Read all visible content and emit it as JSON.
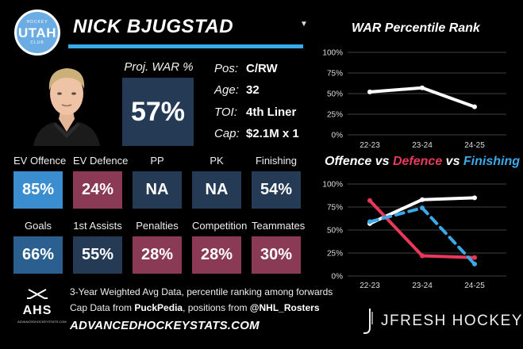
{
  "team_logo": {
    "text": "UTAH",
    "ring_top": "HOCKEY",
    "ring_bottom": "CLUB"
  },
  "player": {
    "name": "NICK BJUGSTAD"
  },
  "proj_war": {
    "label": "Proj. WAR %",
    "value": "57%"
  },
  "info": [
    {
      "label": "Pos:",
      "value": "C/RW"
    },
    {
      "label": "Age:",
      "value": "32"
    },
    {
      "label": "TOI:",
      "value": "4th Liner"
    },
    {
      "label": "Cap:",
      "value": "$2.1M x 1"
    }
  ],
  "stats_row1": [
    {
      "label": "EV Offence",
      "value": "85%",
      "color": "#3a8ed0"
    },
    {
      "label": "EV Defence",
      "value": "24%",
      "color": "#8a3a55"
    },
    {
      "label": "PP",
      "value": "NA",
      "color": "#243a55"
    },
    {
      "label": "PK",
      "value": "NA",
      "color": "#243a55"
    },
    {
      "label": "Finishing",
      "value": "54%",
      "color": "#243a55"
    }
  ],
  "stats_row2": [
    {
      "label": "Goals",
      "value": "66%",
      "color": "#2a5f8f"
    },
    {
      "label": "1st Assists",
      "value": "55%",
      "color": "#243a55"
    },
    {
      "label": "Penalties",
      "value": "28%",
      "color": "#8a3a55"
    },
    {
      "label": "Competition",
      "value": "28%",
      "color": "#8a3a55"
    },
    {
      "label": "Teammates",
      "value": "30%",
      "color": "#8a3a55"
    }
  ],
  "footer": {
    "line1": "3-Year Weighted Avg Data, percentile ranking among forwards",
    "line2_prefix": "Cap Data from ",
    "line2_source1": "PuckPedia",
    "line2_mid": ", positions from ",
    "line2_source2": "@NHL_Rosters",
    "website": "ADVANCEDHOCKEYSTATS.COM"
  },
  "ahs_logo": {
    "text": "AHS",
    "small": "ADVANCEDHOCKEYSTATS.COM"
  },
  "jfresh": {
    "text": "JFRESH HOCKEY"
  },
  "chart_data": [
    {
      "type": "line",
      "title": "WAR Percentile Rank",
      "categories": [
        "22-23",
        "23-24",
        "24-25"
      ],
      "yticks": [
        "0%",
        "25%",
        "50%",
        "75%",
        "100%"
      ],
      "ylim": [
        0,
        100
      ],
      "grid": true,
      "series": [
        {
          "name": "",
          "values": [
            52,
            57,
            34
          ],
          "color": "#ffffff",
          "dash": false
        }
      ]
    },
    {
      "type": "line",
      "title_parts": [
        {
          "text": "Offence",
          "color": "#ffffff"
        },
        {
          "text": " vs ",
          "color": "#ffffff"
        },
        {
          "text": "Defence",
          "color": "#e8395a"
        },
        {
          "text": " vs ",
          "color": "#ffffff"
        },
        {
          "text": "Finishing",
          "color": "#3aa9e8"
        }
      ],
      "categories": [
        "22-23",
        "23-24",
        "24-25"
      ],
      "yticks": [
        "0%",
        "25%",
        "50%",
        "75%",
        "100%"
      ],
      "ylim": [
        0,
        100
      ],
      "grid": true,
      "series": [
        {
          "name": "Offence",
          "values": [
            57,
            83,
            85
          ],
          "color": "#ffffff",
          "dash": false
        },
        {
          "name": "Defence",
          "values": [
            82,
            22,
            20
          ],
          "color": "#e8395a",
          "dash": false
        },
        {
          "name": "Finishing",
          "values": [
            59,
            74,
            13
          ],
          "color": "#3aa9e8",
          "dash": true
        }
      ]
    }
  ]
}
